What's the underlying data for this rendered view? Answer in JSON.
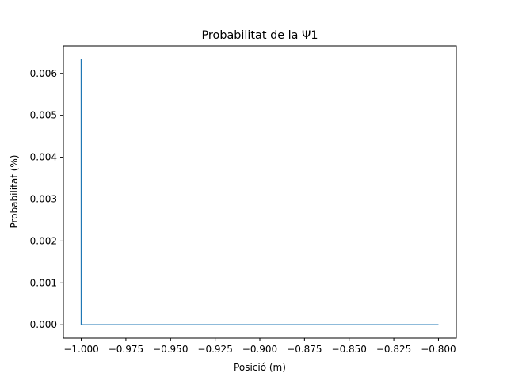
{
  "chart_data": {
    "type": "line",
    "title": "Probabilitat de la Ψ1",
    "xlabel": "Posició (m)",
    "ylabel": "Probabilitat (%)",
    "xlim": [
      -1.01,
      -0.79
    ],
    "ylim": [
      -0.000317,
      0.006657
    ],
    "x_ticks": [
      -1.0,
      -0.975,
      -0.95,
      -0.925,
      -0.9,
      -0.875,
      -0.85,
      -0.825,
      -0.8
    ],
    "x_tick_labels": [
      "−1.000",
      "−0.975",
      "−0.950",
      "−0.925",
      "−0.900",
      "−0.875",
      "−0.850",
      "−0.825",
      "−0.800"
    ],
    "y_ticks": [
      0.0,
      0.001,
      0.002,
      0.003,
      0.004,
      0.005,
      0.006
    ],
    "y_tick_labels": [
      "0.000",
      "0.001",
      "0.002",
      "0.003",
      "0.004",
      "0.005",
      "0.006"
    ],
    "grid": false,
    "series": [
      {
        "color": "#1f77b4",
        "x": [
          -0.99999,
          -0.99998,
          -0.99997,
          -0.99996,
          -0.99995,
          -0.99994,
          -0.99993,
          -0.99992,
          -0.9995,
          -0.999,
          -0.99,
          -0.95,
          -0.9,
          -0.85,
          -0.8
        ],
        "y": [
          0.00634,
          0.0,
          0.00105,
          0.0,
          4e-05,
          0.0,
          2e-05,
          0.0,
          0.0,
          0.0,
          0.0,
          0.0,
          0.0,
          0.0,
          0.0
        ]
      }
    ]
  }
}
